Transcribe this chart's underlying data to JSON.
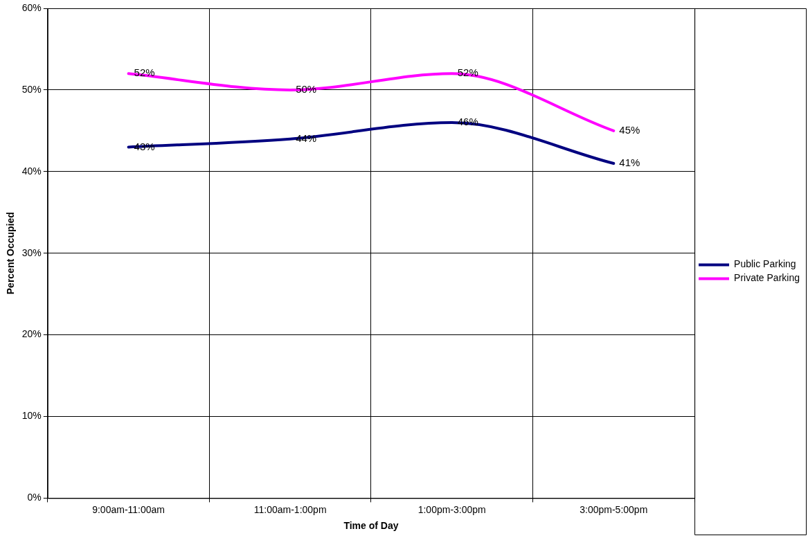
{
  "chart_data": {
    "type": "line",
    "xlabel": "Time of Day",
    "ylabel": "Percent Occupied",
    "categories": [
      "9:00am-11:00am",
      "11:00am-1:00pm",
      "1:00pm-3:00pm",
      "3:00pm-5:00pm"
    ],
    "series": [
      {
        "name": "Public Parking",
        "color": "#000080",
        "values": [
          43,
          44,
          46,
          41
        ],
        "value_labels": [
          "43%",
          "44%",
          "46%",
          "41%"
        ]
      },
      {
        "name": "Private Parking",
        "color": "#ff00ff",
        "values": [
          52,
          50,
          52,
          45
        ],
        "value_labels": [
          "52%",
          "50%",
          "52%",
          "45%"
        ]
      }
    ],
    "ylim": [
      0,
      60
    ],
    "yticks": [
      {
        "value": 0,
        "label": "0%"
      },
      {
        "value": 10,
        "label": "10%"
      },
      {
        "value": 20,
        "label": "20%"
      },
      {
        "value": 30,
        "label": "30%"
      },
      {
        "value": 40,
        "label": "40%"
      },
      {
        "value": 50,
        "label": "50%"
      },
      {
        "value": 60,
        "label": "60%"
      }
    ],
    "grid": true,
    "legend": "right",
    "marker": "none",
    "line_style": "solid"
  }
}
